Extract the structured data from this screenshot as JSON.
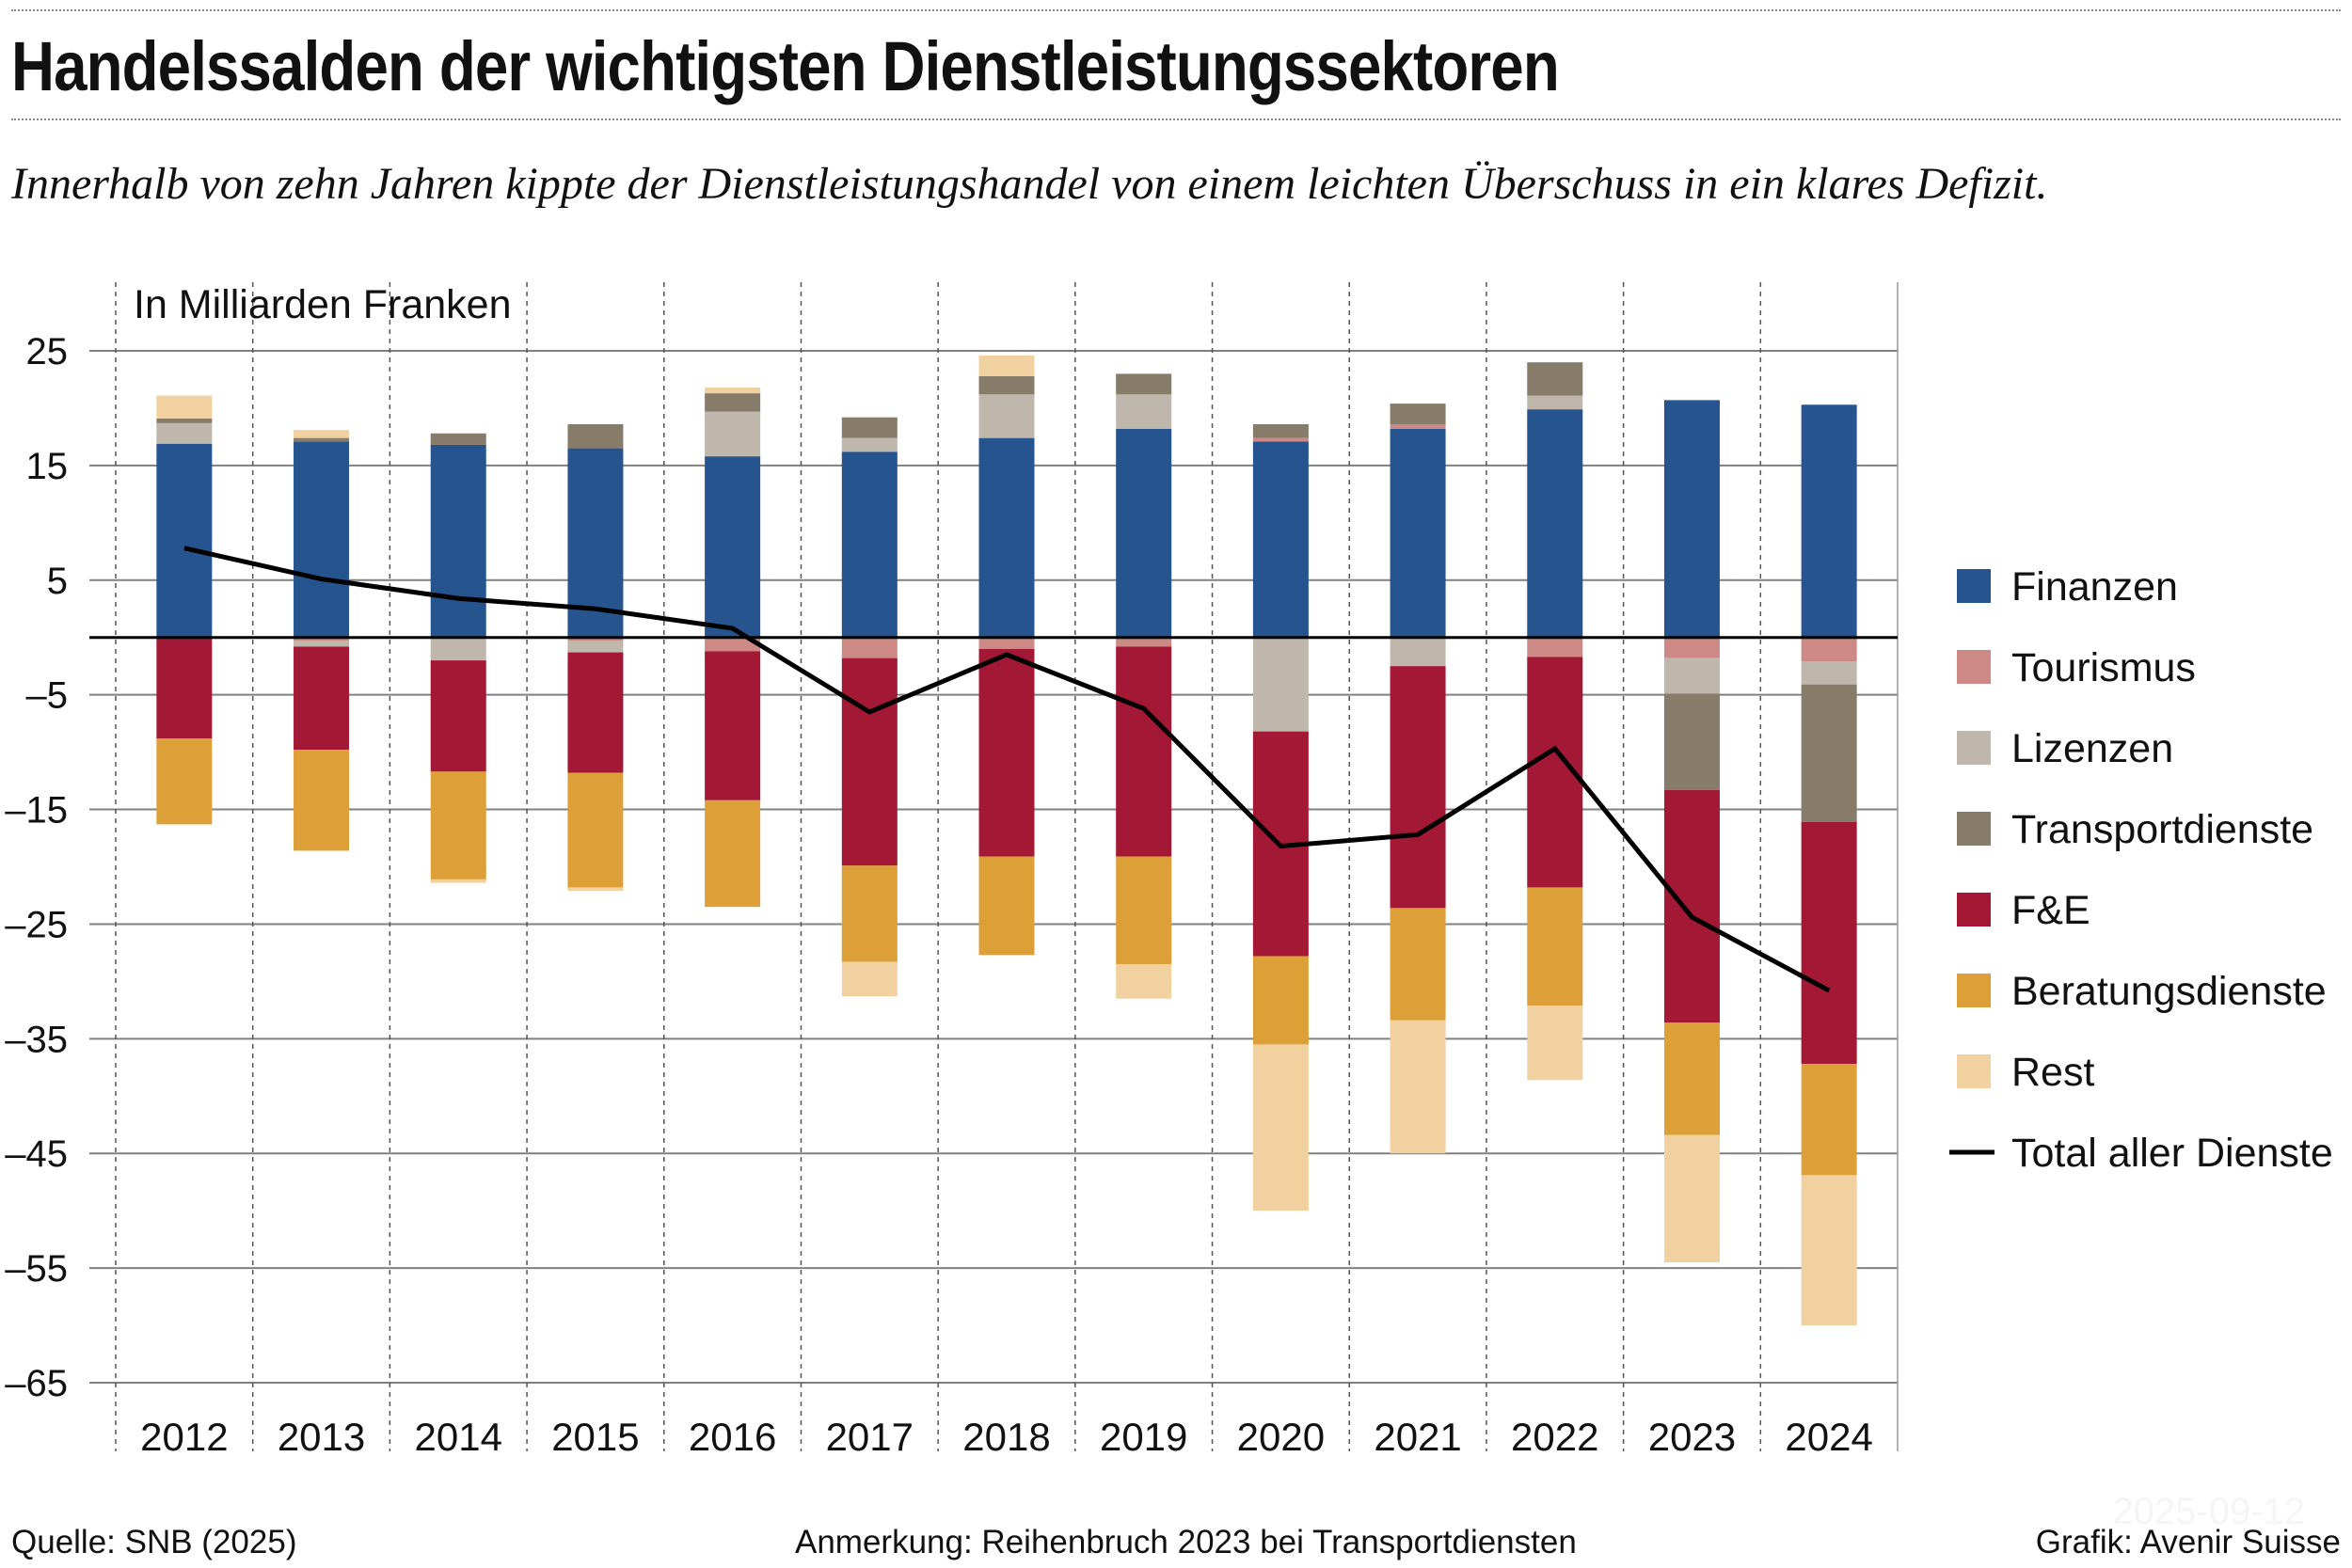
{
  "title": "Handelssalden der wichtigsten Dienstleistungssektoren",
  "subtitle": "Innerhalb von zehn Jahren kippte der Dienstleistungshandel von einem leichten Überschuss in ein klares Defizit.",
  "footer": {
    "source": "Quelle: SNB (2025)",
    "note": "Anmerkung: Reihenbruch 2023 bei Transportdiensten",
    "credit": "Grafik: Avenir Suisse",
    "date": "2025-09-12"
  },
  "chart_data": {
    "type": "bar",
    "stacked": true,
    "ylabel": "In Milliarden Franken",
    "ylim": [
      -65,
      25
    ],
    "yticks": [
      25,
      15,
      5,
      -5,
      -15,
      -25,
      -35,
      -45,
      -55,
      -65
    ],
    "ytick_labels": [
      "25",
      "15",
      "5",
      "–5",
      "–15",
      "–25",
      "–35",
      "–45",
      "–55",
      "–65"
    ],
    "grid": true,
    "legend_position": "right",
    "categories": [
      "2012",
      "2013",
      "2014",
      "2015",
      "2016",
      "2017",
      "2018",
      "2019",
      "2020",
      "2021",
      "2022",
      "2023",
      "2024"
    ],
    "series": [
      {
        "name": "Finanzen",
        "color": "#26548f",
        "values": [
          16.9,
          17.1,
          16.8,
          16.5,
          15.8,
          16.2,
          17.4,
          18.2,
          17.1,
          18.2,
          19.9,
          20.7,
          20.3
        ]
      },
      {
        "name": "Tourismus",
        "color": "#cd8986",
        "values": [
          0,
          -0.3,
          0,
          -0.3,
          -1.2,
          -1.8,
          -1.0,
          -0.8,
          0.3,
          0.4,
          -1.7,
          -1.8,
          -2.1
        ]
      },
      {
        "name": "Lizenzen",
        "color": "#bfb7ac",
        "values": [
          1.8,
          -0.5,
          -2.0,
          -1.0,
          3.9,
          1.2,
          3.8,
          3.0,
          -8.2,
          -2.5,
          1.2,
          -3.1,
          -2.0
        ]
      },
      {
        "name": "Transportdienste",
        "color": "#877b6a",
        "values": [
          0.4,
          0.3,
          1.0,
          2.1,
          1.6,
          1.8,
          1.6,
          1.8,
          1.2,
          1.8,
          2.9,
          -8.4,
          -12.0
        ]
      },
      {
        "name": "F&E",
        "color": "#a31834",
        "values": [
          -8.8,
          -9.0,
          -9.7,
          -10.5,
          -13.0,
          -18.1,
          -18.1,
          -18.3,
          -19.6,
          -21.1,
          -20.1,
          -20.3,
          -21.1
        ]
      },
      {
        "name": "Beratungsdienste",
        "color": "#dd9f38",
        "values": [
          -7.5,
          -8.8,
          -9.4,
          -10.0,
          -9.3,
          -8.4,
          -8.6,
          -9.4,
          -7.7,
          -9.8,
          -10.3,
          -9.8,
          -9.7
        ]
      },
      {
        "name": "Rest",
        "color": "#f0d19f",
        "values": [
          2.0,
          0.7,
          -0.3,
          -0.3,
          0.5,
          -3.0,
          1.8,
          -3.0,
          -14.5,
          -11.6,
          -6.5,
          -11.1,
          -13.1
        ]
      }
    ],
    "line": {
      "name": "Total aller Dienste",
      "color": "#000000",
      "values": [
        7.8,
        5.1,
        3.4,
        2.5,
        0.8,
        -6.5,
        -1.5,
        -6.2,
        -18.2,
        -17.2,
        -9.7,
        -24.4,
        -30.8
      ]
    }
  }
}
